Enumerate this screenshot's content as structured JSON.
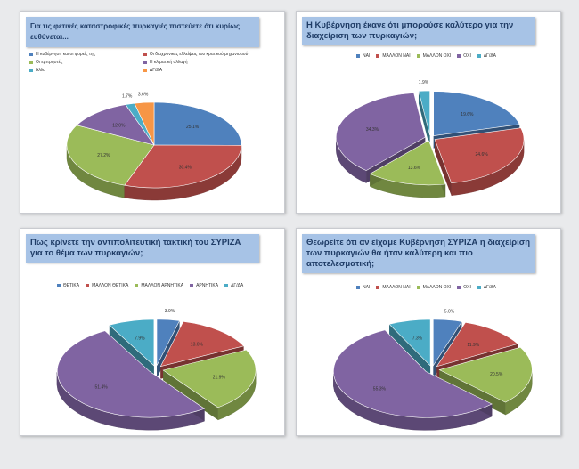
{
  "chart_data": [
    {
      "type": "pie",
      "title": "Για τις φετινές καταστροφικές πυρκαγιές πιστεύετε ότι κυρίως ευθύνεται...",
      "legend_layout": "two-column",
      "legend": [
        "Η κυβέρνηση και οι φορείς της",
        "Οι διαχρονικές ελλείψεις του κρατικού μηχανισμού",
        "Οι εμπρηστές",
        "Η κλιματική αλλαγή",
        "Άλλο",
        "ΔΓ/ΔΑ"
      ],
      "values": [
        25.1,
        30.4,
        27.2,
        12.0,
        1.7,
        3.6
      ],
      "labels": [
        "25.1%",
        "30.4%",
        "27.2%",
        "12.0%",
        "1.7%",
        "3.6%"
      ],
      "colors": [
        "#4f81bd",
        "#c0504d",
        "#9bbb59",
        "#8064a2",
        "#4bacc6",
        "#f79646"
      ],
      "explode": [
        0,
        0,
        0,
        0,
        0,
        0
      ]
    },
    {
      "type": "pie",
      "title": "Η Κυβέρνηση έκανε ότι μπορούσε καλύτερο για την διαχείριση των πυρκαγιών;",
      "legend_layout": "row",
      "legend": [
        "ΝΑΙ",
        "ΜΑΛΛΟΝ ΝΑΙ",
        "ΜΑΛΛΟΝ ΟΧΙ",
        "ΟΧΙ",
        "ΔΓ/ΔΑ"
      ],
      "values": [
        19.6,
        24.6,
        13.6,
        34.3,
        1.9
      ],
      "labels": [
        "19.6%",
        "24.6%",
        "13.6%",
        "34.3%",
        "1.9%"
      ],
      "colors": [
        "#4f81bd",
        "#c0504d",
        "#9bbb59",
        "#8064a2",
        "#4bacc6"
      ],
      "explode": [
        0.1,
        0.1,
        0.1,
        0.1,
        0.1
      ]
    },
    {
      "type": "pie",
      "title": "Πως κρίνετε την αντιπολιτευτική τακτική του ΣΥΡΙΖΑ για το θέμα των πυρκαγιών;",
      "legend_layout": "row",
      "legend": [
        "ΘΕΤΙΚΑ",
        "ΜΑΛΛΟΝ ΘΕΤΙΚΑ",
        "ΜΑΛΛΟΝ ΑΡΝΗΤΙΚΑ",
        "ΑΡΝΗΤΙΚΑ",
        "ΔΓ/ΔΑ"
      ],
      "values": [
        3.9,
        13.6,
        21.9,
        51.4,
        7.9
      ],
      "labels": [
        "3.9%",
        "13.6%",
        "21.9%",
        "51.4%",
        "7.9%"
      ],
      "colors": [
        "#4f81bd",
        "#c0504d",
        "#9bbb59",
        "#8064a2",
        "#4bacc6"
      ],
      "explode": [
        0.12,
        0.12,
        0.12,
        0.12,
        0.12
      ]
    },
    {
      "type": "pie",
      "title": "Θεωρείτε ότι αν είχαμε Κυβέρνηση ΣΥΡΙΖΑ η διαχείριση των πυρκαγιών θα ήταν καλύτερη και πιο αποτελεσματική;",
      "legend_layout": "row",
      "legend": [
        "ΝΑΙ",
        "ΜΑΛΛΟΝ ΝΑΙ",
        "ΜΑΛΛΟΝ ΟΧΙ",
        "ΟΧΙ",
        "ΔΓ/ΔΑ"
      ],
      "values": [
        5.0,
        11.9,
        20.5,
        55.3,
        7.3
      ],
      "labels": [
        "5.0%",
        "11.9%",
        "20.5%",
        "55.3%",
        "7.3%"
      ],
      "colors": [
        "#4f81bd",
        "#c0504d",
        "#9bbb59",
        "#8064a2",
        "#4bacc6"
      ],
      "explode": [
        0.12,
        0.12,
        0.12,
        0.12,
        0.12
      ]
    }
  ]
}
